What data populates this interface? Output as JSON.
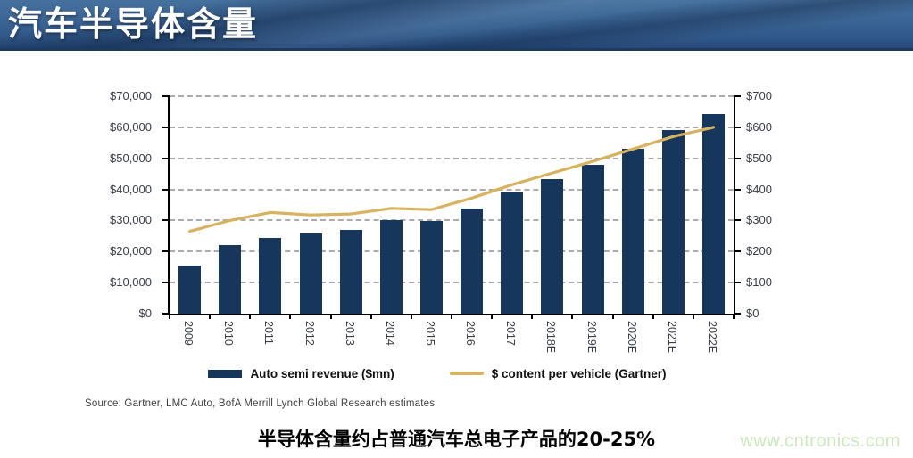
{
  "header": {
    "title": "汽车半导体含量"
  },
  "chart_data": {
    "type": "bar",
    "categories": [
      "2009",
      "2010",
      "2011",
      "2012",
      "2013",
      "2014",
      "2015",
      "2016",
      "2017",
      "2018E",
      "2019E",
      "2020E",
      "2021E",
      "2022E"
    ],
    "series": [
      {
        "name": "Auto semi revenue ($mn)",
        "type": "bar",
        "axis": "left",
        "color": "#16365c",
        "values": [
          15500,
          22000,
          24500,
          25700,
          27000,
          30000,
          29900,
          34000,
          38900,
          43400,
          47900,
          53000,
          59100,
          64300
        ]
      },
      {
        "name": "$ content per vehicle (Gartner)",
        "type": "line",
        "axis": "right",
        "color": "#d8b35f",
        "values": [
          265,
          300,
          326,
          318,
          321,
          339,
          335,
          372,
          415,
          453,
          490,
          530,
          570,
          600
        ]
      }
    ],
    "left_axis": {
      "min": 0,
      "max": 70000,
      "step": 10000,
      "prefix": "$"
    },
    "right_axis": {
      "min": 0,
      "max": 700,
      "step": 100,
      "prefix": "$"
    },
    "grid": "horizontal-dashed",
    "legend_position": "bottom"
  },
  "source": {
    "text": "Source:  Gartner, LMC Auto, BofA Merrill Lynch Global Research estimates"
  },
  "footer": {
    "note": "半导体含量约占普通汽车总电子产品的20-25%",
    "watermark": "www.cntronics.com"
  },
  "colors": {
    "header_blue": "#3a6494",
    "header_edge": "#1d3a60",
    "bar_navy": "#16365c",
    "line_gold": "#d8b35f",
    "grid_gray": "#8f8f8f",
    "axis_text": "#3a3f47",
    "watermark_green": "#cde9bc"
  }
}
